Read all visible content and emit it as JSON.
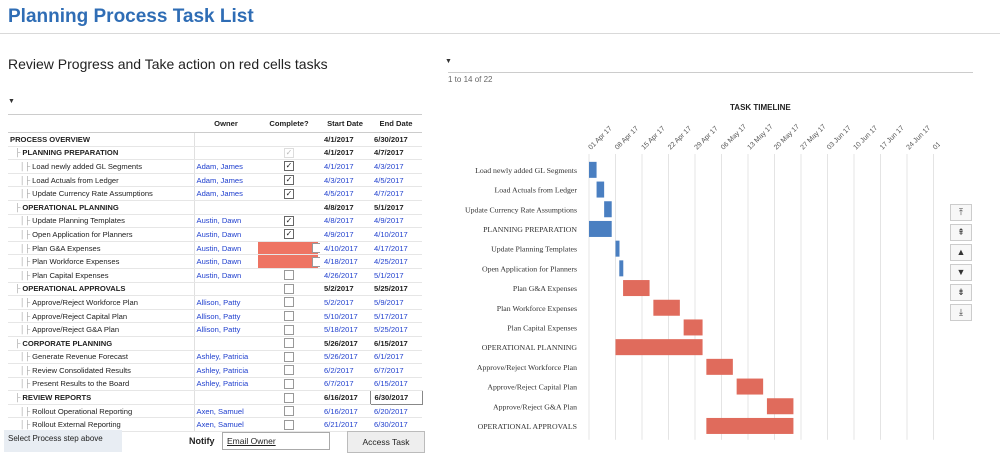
{
  "page": {
    "title": "Planning Process Task List",
    "subtitle": "Review Progress and Take action on red cells tasks",
    "pager_text": "1 to 14 of 22"
  },
  "table": {
    "headers": {
      "task": "",
      "owner": "Owner",
      "complete": "Complete?",
      "start": "Start Date",
      "end": "End Date"
    },
    "rows": [
      {
        "task": "PROCESS OVERVIEW",
        "owner": "",
        "complete": "none",
        "start": "4/1/2017",
        "end": "6/30/2017",
        "level": 0,
        "group": true,
        "red": false
      },
      {
        "task": "PLANNING PREPARATION",
        "owner": "",
        "complete": "disabled",
        "start": "4/1/2017",
        "end": "4/7/2017",
        "level": 1,
        "group": true,
        "red": false
      },
      {
        "task": "Load newly added GL Segments",
        "owner": "Adam, James",
        "complete": "checked",
        "start": "4/1/2017",
        "end": "4/3/2017",
        "level": 2,
        "group": false,
        "red": false
      },
      {
        "task": "Load Actuals from Ledger",
        "owner": "Adam, James",
        "complete": "checked",
        "start": "4/3/2017",
        "end": "4/5/2017",
        "level": 2,
        "group": false,
        "red": false
      },
      {
        "task": "Update Currency Rate Assumptions",
        "owner": "Adam, James",
        "complete": "checked",
        "start": "4/5/2017",
        "end": "4/7/2017",
        "level": 2,
        "group": false,
        "red": false
      },
      {
        "task": "OPERATIONAL PLANNING",
        "owner": "",
        "complete": "none",
        "start": "4/8/2017",
        "end": "5/1/2017",
        "level": 1,
        "group": true,
        "red": false
      },
      {
        "task": "Update Planning Templates",
        "owner": "Austin, Dawn",
        "complete": "checked",
        "start": "4/8/2017",
        "end": "4/9/2017",
        "level": 2,
        "group": false,
        "red": false
      },
      {
        "task": "Open Application for Planners",
        "owner": "Austin, Dawn",
        "complete": "checked",
        "start": "4/9/2017",
        "end": "4/10/2017",
        "level": 2,
        "group": false,
        "red": false
      },
      {
        "task": "Plan G&A Expenses",
        "owner": "Austin, Dawn",
        "complete": "unchecked",
        "start": "4/10/2017",
        "end": "4/17/2017",
        "level": 2,
        "group": false,
        "red": true
      },
      {
        "task": "Plan Workforce Expenses",
        "owner": "Austin, Dawn",
        "complete": "unchecked",
        "start": "4/18/2017",
        "end": "4/25/2017",
        "level": 2,
        "group": false,
        "red": true
      },
      {
        "task": "Plan Capital Expenses",
        "owner": "Austin, Dawn",
        "complete": "unchecked",
        "start": "4/26/2017",
        "end": "5/1/2017",
        "level": 2,
        "group": false,
        "red": false
      },
      {
        "task": "OPERATIONAL APPROVALS",
        "owner": "",
        "complete": "unchecked",
        "start": "5/2/2017",
        "end": "5/25/2017",
        "level": 1,
        "group": true,
        "red": false
      },
      {
        "task": "Approve/Reject Workforce Plan",
        "owner": "Allison, Patty",
        "complete": "unchecked",
        "start": "5/2/2017",
        "end": "5/9/2017",
        "level": 2,
        "group": false,
        "red": false
      },
      {
        "task": "Approve/Reject Capital Plan",
        "owner": "Allison, Patty",
        "complete": "unchecked",
        "start": "5/10/2017",
        "end": "5/17/2017",
        "level": 2,
        "group": false,
        "red": false
      },
      {
        "task": "Approve/Reject G&A Plan",
        "owner": "Allison, Patty",
        "complete": "unchecked",
        "start": "5/18/2017",
        "end": "5/25/2017",
        "level": 2,
        "group": false,
        "red": false
      },
      {
        "task": "CORPORATE PLANNING",
        "owner": "",
        "complete": "unchecked",
        "start": "5/26/2017",
        "end": "6/15/2017",
        "level": 1,
        "group": true,
        "red": false
      },
      {
        "task": "Generate Revenue Forecast",
        "owner": "Ashley, Patricia",
        "complete": "unchecked",
        "start": "5/26/2017",
        "end": "6/1/2017",
        "level": 2,
        "group": false,
        "red": false
      },
      {
        "task": "Review Consolidated Results",
        "owner": "Ashley, Patricia",
        "complete": "unchecked",
        "start": "6/2/2017",
        "end": "6/7/2017",
        "level": 2,
        "group": false,
        "red": false
      },
      {
        "task": "Present Results to the Board",
        "owner": "Ashley, Patricia",
        "complete": "unchecked",
        "start": "6/7/2017",
        "end": "6/15/2017",
        "level": 2,
        "group": false,
        "red": false
      },
      {
        "task": "REVIEW REPORTS",
        "owner": "",
        "complete": "unchecked",
        "start": "6/16/2017",
        "end": "6/30/2017",
        "level": 1,
        "group": true,
        "red": false
      },
      {
        "task": "Rollout Operational Reporting",
        "owner": "Axen, Samuel",
        "complete": "unchecked",
        "start": "6/16/2017",
        "end": "6/20/2017",
        "level": 2,
        "group": false,
        "red": false
      },
      {
        "task": "Rollout External Reporting",
        "owner": "Axen, Samuel",
        "complete": "unchecked",
        "start": "6/21/2017",
        "end": "6/30/2017",
        "level": 2,
        "group": false,
        "red": false
      }
    ]
  },
  "footer": {
    "select_text": "Select Process step above",
    "notify_label": "Notify",
    "email_value": "Email Owner",
    "access_button": "Access Task"
  },
  "colors": {
    "accent": "#2f6db5",
    "bar_blue": "#4a7fc1",
    "bar_red": "#e06b5c",
    "red_cell": "#ee7463"
  },
  "scroll_controls": [
    {
      "name": "scroll-top-button",
      "glyph": "⤒"
    },
    {
      "name": "scroll-page-up-button",
      "glyph": "⇞"
    },
    {
      "name": "scroll-up-button",
      "glyph": "▲"
    },
    {
      "name": "scroll-down-button",
      "glyph": "▼"
    },
    {
      "name": "scroll-page-down-button",
      "glyph": "⇟"
    },
    {
      "name": "scroll-bottom-button",
      "glyph": "⤓"
    }
  ],
  "chart_data": {
    "type": "gantt",
    "title": "TASK TIMELINE",
    "tick_labels": [
      "01 Apr 17",
      "08 Apr 17",
      "15 Apr 17",
      "22 Apr 17",
      "29 Apr 17",
      "06 May 17",
      "13 May 17",
      "20 May 17",
      "27 May 17",
      "03 Jun 17",
      "10 Jun 17",
      "17 Jun 17",
      "24 Jun 17",
      "01"
    ],
    "axis_start_day": 0,
    "axis_days_per_tick": 7,
    "tasks": [
      {
        "label": "Load newly added GL Segments",
        "start": 0,
        "end": 2,
        "color": "blue"
      },
      {
        "label": "Load Actuals from Ledger",
        "start": 2,
        "end": 4,
        "color": "blue"
      },
      {
        "label": "Update Currency Rate Assumptions",
        "start": 4,
        "end": 6,
        "color": "blue"
      },
      {
        "label": "PLANNING PREPARATION",
        "start": 0,
        "end": 6,
        "color": "blue"
      },
      {
        "label": "Update Planning Templates",
        "start": 7,
        "end": 8,
        "color": "blue"
      },
      {
        "label": "Open Application for Planners",
        "start": 8,
        "end": 9,
        "color": "blue"
      },
      {
        "label": "Plan G&A Expenses",
        "start": 9,
        "end": 16,
        "color": "red"
      },
      {
        "label": "Plan Workforce Expenses",
        "start": 17,
        "end": 24,
        "color": "red"
      },
      {
        "label": "Plan Capital Expenses",
        "start": 25,
        "end": 30,
        "color": "red"
      },
      {
        "label": "OPERATIONAL PLANNING",
        "start": 7,
        "end": 30,
        "color": "red"
      },
      {
        "label": "Approve/Reject Workforce Plan",
        "start": 31,
        "end": 38,
        "color": "red"
      },
      {
        "label": "Approve/Reject Capital Plan",
        "start": 39,
        "end": 46,
        "color": "red"
      },
      {
        "label": "Approve/Reject G&A Plan",
        "start": 47,
        "end": 54,
        "color": "red"
      },
      {
        "label": "OPERATIONAL APPROVALS",
        "start": 31,
        "end": 54,
        "color": "red"
      }
    ]
  }
}
